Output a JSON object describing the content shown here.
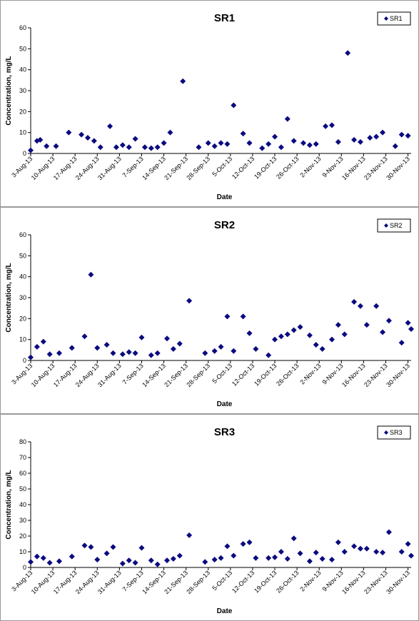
{
  "chart_data": [
    {
      "type": "scatter",
      "title": "SR1",
      "xlabel": "Date",
      "ylabel": "Concentration, mg/L",
      "ylim": [
        0,
        60
      ],
      "yticks": [
        "0",
        "10",
        "20",
        "30",
        "40",
        "50",
        "60"
      ],
      "xticks": [
        "3-Aug-13",
        "10-Aug-13",
        "17-Aug-13",
        "24-Aug-13",
        "31-Aug-13",
        "7-Sep-13",
        "14-Sep-13",
        "21-Sep-13",
        "28-Sep-13",
        "5-Oct-13",
        "12-Oct-13",
        "19-Oct-13",
        "26-Oct-13",
        "2-Nov-13",
        "9-Nov-13",
        "16-Nov-13",
        "23-Nov-13",
        "30-Nov-13"
      ],
      "xlim": [
        "2013-08-03",
        "2013-12-01"
      ],
      "grid": false,
      "legend": "top-right",
      "color": "#0a0a80",
      "series": [
        {
          "name": "SR1",
          "points": [
            [
              "2013-08-03",
              1.5
            ],
            [
              "2013-08-05",
              6
            ],
            [
              "2013-08-06",
              6.5
            ],
            [
              "2013-08-08",
              3.5
            ],
            [
              "2013-08-11",
              3.5
            ],
            [
              "2013-08-15",
              10
            ],
            [
              "2013-08-19",
              9
            ],
            [
              "2013-08-21",
              7.5
            ],
            [
              "2013-08-23",
              6
            ],
            [
              "2013-08-25",
              3
            ],
            [
              "2013-08-28",
              13
            ],
            [
              "2013-08-30",
              3
            ],
            [
              "2013-09-01",
              4
            ],
            [
              "2013-09-03",
              3
            ],
            [
              "2013-09-05",
              7
            ],
            [
              "2013-09-08",
              3
            ],
            [
              "2013-09-10",
              2.5
            ],
            [
              "2013-09-12",
              3
            ],
            [
              "2013-09-14",
              5
            ],
            [
              "2013-09-16",
              10
            ],
            [
              "2013-09-20",
              34.5
            ],
            [
              "2013-09-25",
              3
            ],
            [
              "2013-09-28",
              5
            ],
            [
              "2013-09-30",
              3.5
            ],
            [
              "2013-10-02",
              5
            ],
            [
              "2013-10-04",
              4.5
            ],
            [
              "2013-10-06",
              23
            ],
            [
              "2013-10-09",
              9.5
            ],
            [
              "2013-10-11",
              5
            ],
            [
              "2013-10-15",
              2.5
            ],
            [
              "2013-10-17",
              4.5
            ],
            [
              "2013-10-19",
              8
            ],
            [
              "2013-10-21",
              3
            ],
            [
              "2013-10-23",
              16.5
            ],
            [
              "2013-10-25",
              6
            ],
            [
              "2013-10-28",
              5
            ],
            [
              "2013-10-30",
              4
            ],
            [
              "2013-11-01",
              4.5
            ],
            [
              "2013-11-04",
              13
            ],
            [
              "2013-11-06",
              13.5
            ],
            [
              "2013-11-08",
              5.5
            ],
            [
              "2013-11-11",
              48
            ],
            [
              "2013-11-13",
              6.5
            ],
            [
              "2013-11-15",
              5.5
            ],
            [
              "2013-11-18",
              7.5
            ],
            [
              "2013-11-20",
              8
            ],
            [
              "2013-11-22",
              10
            ],
            [
              "2013-11-26",
              3.5
            ],
            [
              "2013-11-28",
              9
            ],
            [
              "2013-11-30",
              8.5
            ]
          ]
        }
      ]
    },
    {
      "type": "scatter",
      "title": "SR2",
      "xlabel": "Date",
      "ylabel": "Concentration, mg/L",
      "ylim": [
        0,
        60
      ],
      "yticks": [
        "0",
        "10",
        "20",
        "30",
        "40",
        "50",
        "60"
      ],
      "xticks": [
        "3-Aug-13",
        "10-Aug-13",
        "17-Aug-13",
        "24-Aug-13",
        "31-Aug-13",
        "7-Sep-13",
        "14-Sep-13",
        "21-Sep-13",
        "28-Sep-13",
        "5-Oct-13",
        "12-Oct-13",
        "19-Oct-13",
        "26-Oct-13",
        "2-Nov-13",
        "9-Nov-13",
        "16-Nov-13",
        "23-Nov-13",
        "30-Nov-13"
      ],
      "xlim": [
        "2013-08-03",
        "2013-12-01"
      ],
      "grid": false,
      "legend": "top-right",
      "color": "#0a0a80",
      "series": [
        {
          "name": "SR2",
          "points": [
            [
              "2013-08-03",
              1.5
            ],
            [
              "2013-08-05",
              6.5
            ],
            [
              "2013-08-07",
              9
            ],
            [
              "2013-08-09",
              3
            ],
            [
              "2013-08-12",
              3.5
            ],
            [
              "2013-08-16",
              6
            ],
            [
              "2013-08-20",
              11.5
            ],
            [
              "2013-08-22",
              41
            ],
            [
              "2013-08-24",
              6
            ],
            [
              "2013-08-27",
              7.5
            ],
            [
              "2013-08-29",
              3.5
            ],
            [
              "2013-09-01",
              3
            ],
            [
              "2013-09-03",
              4
            ],
            [
              "2013-09-05",
              3.5
            ],
            [
              "2013-09-07",
              11
            ],
            [
              "2013-09-10",
              2.5
            ],
            [
              "2013-09-12",
              3.5
            ],
            [
              "2013-09-15",
              10.5
            ],
            [
              "2013-09-17",
              5.5
            ],
            [
              "2013-09-19",
              8
            ],
            [
              "2013-09-22",
              28.5
            ],
            [
              "2013-09-27",
              3.5
            ],
            [
              "2013-09-30",
              4.5
            ],
            [
              "2013-10-02",
              6.5
            ],
            [
              "2013-10-04",
              21
            ],
            [
              "2013-10-06",
              4.5
            ],
            [
              "2013-10-09",
              21
            ],
            [
              "2013-10-11",
              13
            ],
            [
              "2013-10-13",
              5.5
            ],
            [
              "2013-10-17",
              2.5
            ],
            [
              "2013-10-19",
              10
            ],
            [
              "2013-10-21",
              11.5
            ],
            [
              "2013-10-23",
              12.5
            ],
            [
              "2013-10-25",
              14.5
            ],
            [
              "2013-10-27",
              16
            ],
            [
              "2013-10-30",
              12
            ],
            [
              "2013-11-01",
              7.5
            ],
            [
              "2013-11-03",
              5.5
            ],
            [
              "2013-11-06",
              10
            ],
            [
              "2013-11-08",
              17
            ],
            [
              "2013-11-10",
              12.5
            ],
            [
              "2013-11-13",
              28
            ],
            [
              "2013-11-15",
              26
            ],
            [
              "2013-11-17",
              17
            ],
            [
              "2013-11-20",
              26
            ],
            [
              "2013-11-22",
              13.5
            ],
            [
              "2013-11-24",
              19
            ],
            [
              "2013-11-28",
              8.5
            ],
            [
              "2013-11-30",
              18
            ],
            [
              "2013-12-01",
              15
            ]
          ]
        }
      ]
    },
    {
      "type": "scatter",
      "title": "SR3",
      "xlabel": "Date",
      "ylabel": "Concentration, mg/L",
      "ylim": [
        0,
        80
      ],
      "yticks": [
        "0",
        "10",
        "20",
        "30",
        "40",
        "50",
        "60",
        "70",
        "80"
      ],
      "xticks": [
        "3-Aug-13",
        "10-Aug-13",
        "17-Aug-13",
        "24-Aug-13",
        "31-Aug-13",
        "7-Sep-13",
        "14-Sep-13",
        "21-Sep-13",
        "28-Sep-13",
        "5-Oct-13",
        "12-Oct-13",
        "19-Oct-13",
        "26-Oct-13",
        "2-Nov-13",
        "9-Nov-13",
        "16-Nov-13",
        "23-Nov-13",
        "30-Nov-13"
      ],
      "xlim": [
        "2013-08-03",
        "2013-12-01"
      ],
      "grid": false,
      "legend": "top-right",
      "color": "#0a0a80",
      "series": [
        {
          "name": "SR3",
          "points": [
            [
              "2013-08-03",
              3.5
            ],
            [
              "2013-08-05",
              7
            ],
            [
              "2013-08-07",
              6
            ],
            [
              "2013-08-09",
              3
            ],
            [
              "2013-08-12",
              4
            ],
            [
              "2013-08-16",
              7
            ],
            [
              "2013-08-20",
              14
            ],
            [
              "2013-08-22",
              13
            ],
            [
              "2013-08-24",
              5
            ],
            [
              "2013-08-27",
              9
            ],
            [
              "2013-08-29",
              13
            ],
            [
              "2013-09-01",
              2.5
            ],
            [
              "2013-09-03",
              4.5
            ],
            [
              "2013-09-05",
              3
            ],
            [
              "2013-09-07",
              12.5
            ],
            [
              "2013-09-10",
              4.5
            ],
            [
              "2013-09-12",
              2
            ],
            [
              "2013-09-15",
              4.5
            ],
            [
              "2013-09-17",
              5.5
            ],
            [
              "2013-09-19",
              7.5
            ],
            [
              "2013-09-22",
              20.5
            ],
            [
              "2013-09-27",
              3.5
            ],
            [
              "2013-09-30",
              5
            ],
            [
              "2013-10-02",
              6
            ],
            [
              "2013-10-04",
              13.5
            ],
            [
              "2013-10-06",
              7.5
            ],
            [
              "2013-10-09",
              15
            ],
            [
              "2013-10-11",
              16
            ],
            [
              "2013-10-13",
              6
            ],
            [
              "2013-10-17",
              6
            ],
            [
              "2013-10-19",
              6.5
            ],
            [
              "2013-10-21",
              10
            ],
            [
              "2013-10-23",
              5.5
            ],
            [
              "2013-10-25",
              18.5
            ],
            [
              "2013-10-27",
              9
            ],
            [
              "2013-10-30",
              4
            ],
            [
              "2013-11-01",
              9.5
            ],
            [
              "2013-11-03",
              5.5
            ],
            [
              "2013-11-06",
              5
            ],
            [
              "2013-11-08",
              16
            ],
            [
              "2013-11-10",
              10
            ],
            [
              "2013-11-13",
              13.5
            ],
            [
              "2013-11-15",
              12
            ],
            [
              "2013-11-17",
              12
            ],
            [
              "2013-11-20",
              10
            ],
            [
              "2013-11-22",
              9.5
            ],
            [
              "2013-11-24",
              22.5
            ],
            [
              "2013-11-28",
              10
            ],
            [
              "2013-11-30",
              15
            ],
            [
              "2013-12-01",
              7.5
            ]
          ]
        }
      ]
    }
  ]
}
